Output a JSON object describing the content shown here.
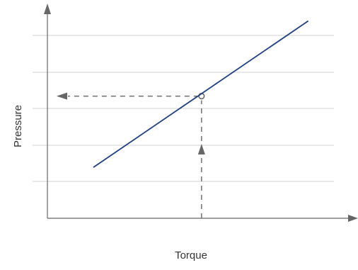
{
  "chart_data": {
    "type": "line",
    "title": "",
    "xlabel": "Torque",
    "ylabel": "Pressure",
    "grid": "horizontal",
    "series": [
      {
        "x": [
          0.155,
          0.87
        ],
        "y": [
          0.26,
          1.0
        ],
        "color": "#1f3f7f"
      }
    ],
    "highlight_point": {
      "x": 0.515,
      "y": 0.62
    },
    "xlim": [
      0,
      1
    ],
    "ylim": [
      0,
      1.0
    ],
    "colors": {
      "axis": "#666666",
      "grid": "#d0d0d0",
      "line": "#1f3f7f",
      "guide": "#666666"
    }
  }
}
